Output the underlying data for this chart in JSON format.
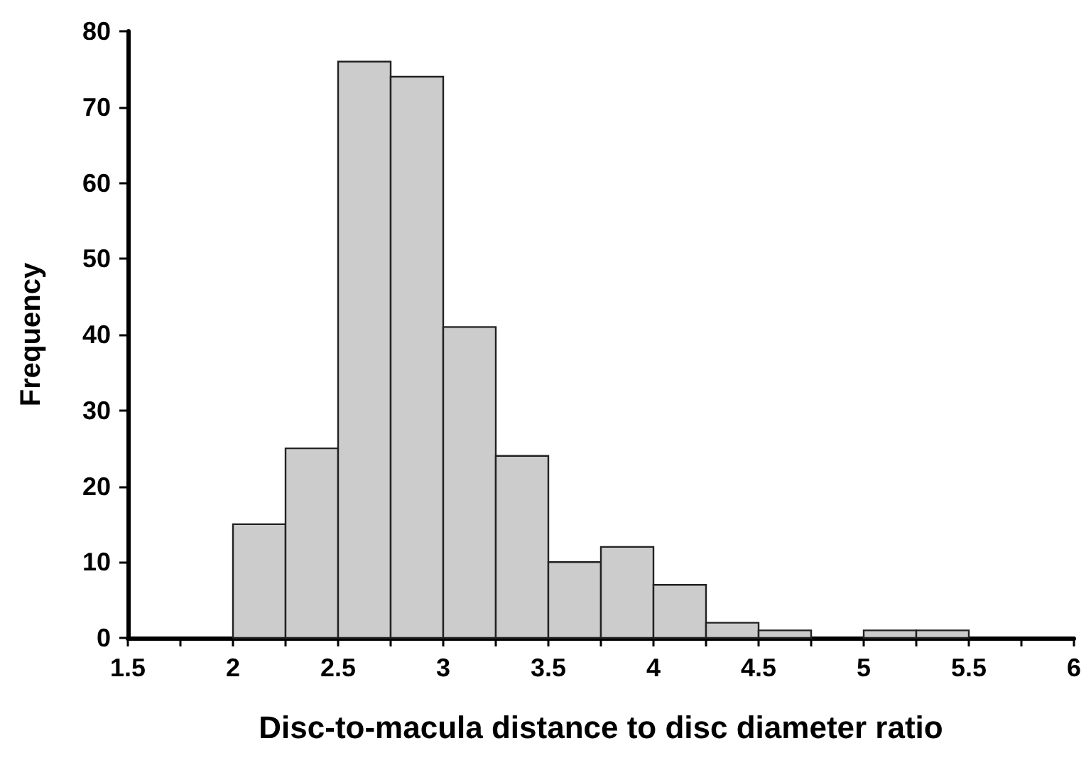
{
  "chart_data": {
    "type": "histogram",
    "xlabel": "Disc-to-macula distance to disc diameter ratio",
    "ylabel": "Frequency",
    "bins": [
      2,
      2.25,
      2.5,
      2.75,
      3,
      3.25,
      3.5,
      3.75,
      4,
      4.25,
      4.5,
      4.75,
      5,
      5.25,
      5.5
    ],
    "values": [
      15,
      25,
      76,
      74,
      41,
      24,
      10,
      12,
      7,
      2,
      1,
      0,
      1,
      1
    ],
    "color": "#cccccc",
    "xlim": [
      1.5,
      6
    ],
    "xticks": [
      1.5,
      {
        "value": 1.75,
        "label": null
      },
      2,
      {
        "value": 2.25,
        "label": null
      },
      2.5,
      {
        "value": 2.75,
        "label": null
      },
      3,
      {
        "value": 3.25,
        "label": null
      },
      3.5,
      {
        "value": 3.75,
        "label": null
      },
      4,
      {
        "value": 4.25,
        "label": null
      },
      4.5,
      {
        "value": 4.75,
        "label": null
      },
      5,
      {
        "value": 5.25,
        "label": null
      },
      5.5,
      {
        "value": 5.75,
        "label": null
      },
      6
    ],
    "ylim": [
      0,
      80
    ],
    "yticks": [
      0,
      10,
      20,
      30,
      40,
      50,
      60,
      70,
      80
    ],
    "grid": false
  }
}
